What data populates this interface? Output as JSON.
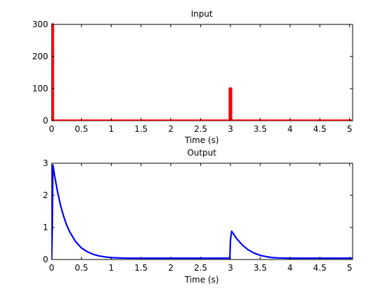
{
  "chart_data": [
    {
      "type": "line",
      "title": "Input",
      "xlabel": "Time (s)",
      "ylabel": "",
      "xlim": [
        0,
        5.05
      ],
      "ylim": [
        0,
        300
      ],
      "xticks": [
        0,
        0.5,
        1,
        1.5,
        2,
        2.5,
        3,
        3.5,
        4,
        4.5,
        5
      ],
      "xtick_labels": [
        "0",
        "0.5",
        "1",
        "1.5",
        "2",
        "2.5",
        "3",
        "3.5",
        "4",
        "4.5",
        "5"
      ],
      "yticks": [
        0,
        100,
        200,
        300
      ],
      "ytick_labels": [
        "0",
        "100",
        "200",
        "300"
      ],
      "grid": false,
      "series": [
        {
          "color": "#ff0000",
          "x": [
            0,
            0.01,
            0.01,
            0.02,
            0.02,
            2.99,
            2.99,
            3.01,
            3.01,
            5.05
          ],
          "y": [
            0,
            0,
            300,
            300,
            0,
            0,
            100,
            100,
            0,
            0
          ]
        }
      ]
    },
    {
      "type": "line",
      "title": "Output",
      "xlabel": "Time (s)",
      "ylabel": "",
      "xlim": [
        0,
        5.05
      ],
      "ylim": [
        0,
        3
      ],
      "xticks": [
        0,
        0.5,
        1,
        1.5,
        2,
        2.5,
        3,
        3.5,
        4,
        4.5,
        5
      ],
      "xtick_labels": [
        "0",
        "0.5",
        "1",
        "1.5",
        "2",
        "2.5",
        "3",
        "3.5",
        "4",
        "4.5",
        "5"
      ],
      "yticks": [
        0,
        1,
        2,
        3
      ],
      "ytick_labels": [
        "0",
        "1",
        "2",
        "3"
      ],
      "grid": false,
      "series": [
        {
          "color": "#0000ff",
          "x": [
            0,
            0.01,
            0.02,
            0.03,
            0.05,
            0.1,
            0.15,
            0.2,
            0.25,
            0.3,
            0.4,
            0.5,
            0.6,
            0.7,
            0.8,
            0.9,
            1.0,
            1.2,
            1.5,
            2.0,
            2.5,
            2.99,
            3.0,
            3.02,
            3.05,
            3.1,
            3.2,
            3.3,
            3.4,
            3.5,
            3.6,
            3.7,
            3.8,
            4.0,
            4.5,
            5.0,
            5.05
          ],
          "y": [
            0,
            0.9,
            2.95,
            2.85,
            2.6,
            2.1,
            1.68,
            1.35,
            1.08,
            0.87,
            0.56,
            0.36,
            0.24,
            0.16,
            0.11,
            0.08,
            0.06,
            0.045,
            0.04,
            0.04,
            0.04,
            0.04,
            0.6,
            0.88,
            0.8,
            0.66,
            0.45,
            0.3,
            0.2,
            0.13,
            0.09,
            0.06,
            0.05,
            0.04,
            0.04,
            0.04,
            0.04
          ]
        }
      ]
    }
  ]
}
